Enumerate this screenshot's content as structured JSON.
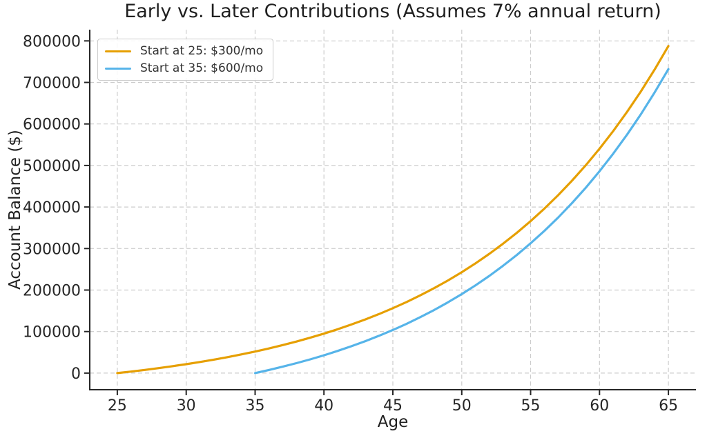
{
  "chart_data": {
    "type": "line",
    "title": "Early vs. Later Contributions (Assumes 7% annual return)",
    "xlabel": "Age",
    "ylabel": "Account Balance ($)",
    "xlim": [
      23,
      67
    ],
    "ylim": [
      -40000,
      827000
    ],
    "x_ticks": [
      25,
      30,
      35,
      40,
      45,
      50,
      55,
      60,
      65
    ],
    "y_ticks": [
      0,
      100000,
      200000,
      300000,
      400000,
      500000,
      600000,
      700000,
      800000
    ],
    "grid": {
      "show": true,
      "axes": "both",
      "style": "dashed",
      "color": "#cccccc"
    },
    "legend": {
      "position": "upper left"
    },
    "axis_color": "#262626",
    "series": [
      {
        "name": "Start at 25: $300/mo",
        "color": "#E69F00",
        "x": [
          25,
          26,
          27,
          28,
          29,
          30,
          31,
          32,
          33,
          34,
          35,
          36,
          37,
          38,
          39,
          40,
          41,
          42,
          43,
          44,
          45,
          46,
          47,
          48,
          49,
          50,
          51,
          52,
          53,
          54,
          55,
          56,
          57,
          58,
          59,
          60,
          61,
          62,
          63,
          64,
          65
        ],
        "y": [
          0,
          3718,
          7705,
          11979,
          16563,
          21478,
          26748,
          32399,
          38459,
          44957,
          51926,
          59398,
          67409,
          75999,
          85211,
          95093,
          105685,
          117043,
          129222,
          142281,
          156282,
          171295,
          187394,
          204656,
          223167,
          243024,
          264312,
          287138,
          311614,
          337861,
          365993,
          396167,
          428522,
          463216,
          500418,
          540324,
          583102,
          628971,
          678157,
          730903,
          787562
        ]
      },
      {
        "name": "Start at 35: $600/mo",
        "color": "#56B4E9",
        "x": [
          35,
          36,
          37,
          38,
          39,
          40,
          41,
          42,
          43,
          44,
          45,
          46,
          47,
          48,
          49,
          50,
          51,
          52,
          53,
          54,
          55,
          56,
          57,
          58,
          59,
          60,
          61,
          62,
          63,
          64,
          65
        ],
        "y": [
          0,
          7436,
          15410,
          23958,
          33126,
          42956,
          53496,
          64798,
          76918,
          89914,
          103852,
          118796,
          134818,
          151998,
          170422,
          190186,
          211370,
          234086,
          258444,
          284562,
          312564,
          342590,
          374788,
          409312,
          446334,
          486048,
          528624,
          574276,
          623228,
          675722,
          731986
        ]
      }
    ]
  }
}
